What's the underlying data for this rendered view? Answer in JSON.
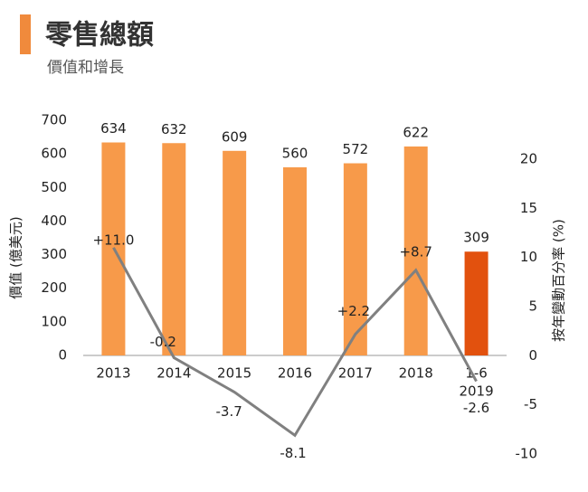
{
  "chart_data": {
    "type": "bar-line",
    "title": "零售總額",
    "subtitle": "價值和增長",
    "y_label": "價值 (億美元)",
    "y2_label": "按年變動百分率 (%)",
    "categories": [
      "2013",
      "2014",
      "2015",
      "2016",
      "2017",
      "2018",
      [
        "1-6",
        "2019"
      ]
    ],
    "series": [
      {
        "type": "bar",
        "colors": [
          "#f79a4a",
          "#f79a4a",
          "#f79a4a",
          "#f79a4a",
          "#f79a4a",
          "#f79a4a",
          "#e2510e"
        ],
        "values": [
          634,
          632,
          609,
          560,
          572,
          622,
          309
        ]
      },
      {
        "type": "line",
        "axis": "y2",
        "color": "#808080",
        "values": [
          11.0,
          -0.2,
          -3.7,
          -8.1,
          2.2,
          8.7,
          -2.6
        ],
        "value_labels": [
          "+11.0",
          "-0.2",
          "-3.7",
          "-8.1",
          "+2.2",
          "+8.7",
          "-2.6"
        ]
      }
    ],
    "ylim": [
      0,
      700
    ],
    "yticks": [
      0,
      100,
      200,
      300,
      400,
      500,
      600,
      700
    ],
    "y2lim": [
      -10,
      20
    ],
    "y2ticks": [
      -10,
      -5,
      0,
      5,
      10,
      15,
      20
    ]
  }
}
